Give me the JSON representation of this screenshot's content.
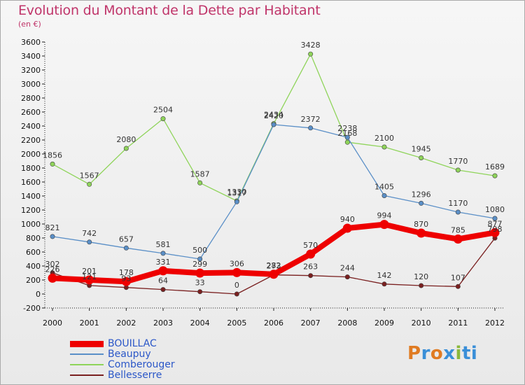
{
  "chart_data": {
    "type": "line",
    "title": "Evolution du Montant de la Dette par Habitant",
    "subtitle": "(en €)",
    "x": [
      "2000",
      "2001",
      "2002",
      "2003",
      "2004",
      "2005",
      "2006",
      "2007",
      "2008",
      "2009",
      "2010",
      "2011",
      "2012"
    ],
    "ylim": [
      -200,
      3600
    ],
    "yticks": [
      "-200",
      "0",
      "200",
      "400",
      "600",
      "800",
      "1000",
      "1200",
      "1400",
      "1600",
      "1800",
      "2000",
      "2200",
      "2400",
      "2600",
      "2800",
      "3000",
      "3200",
      "3400",
      "3600"
    ],
    "grid": false,
    "legend_position": "bottom-left",
    "series": [
      {
        "name": "BOUILLAC",
        "color": "#ee0000",
        "values": [
          226,
          201,
          178,
          331,
          299,
          306,
          282,
          570,
          940,
          994,
          870,
          785,
          877
        ]
      },
      {
        "name": "Beaupuy",
        "color": "#5a8fc7",
        "values": [
          821,
          742,
          657,
          581,
          500,
          1317,
          2420,
          2372,
          2238,
          1405,
          1296,
          1170,
          1080
        ]
      },
      {
        "name": "Comberouger",
        "color": "#8fd45a",
        "values": [
          1856,
          1567,
          2080,
          2504,
          1587,
          1330,
          2434,
          3428,
          2168,
          2100,
          1945,
          1770,
          1689
        ]
      },
      {
        "name": "Bellesserre",
        "color": "#7a2020",
        "values": [
          302,
          121,
          93,
          64,
          33,
          0,
          273,
          263,
          244,
          142,
          120,
          107,
          798
        ]
      }
    ]
  },
  "logo": [
    "P",
    "r",
    "o",
    "x",
    "i",
    "ti"
  ]
}
